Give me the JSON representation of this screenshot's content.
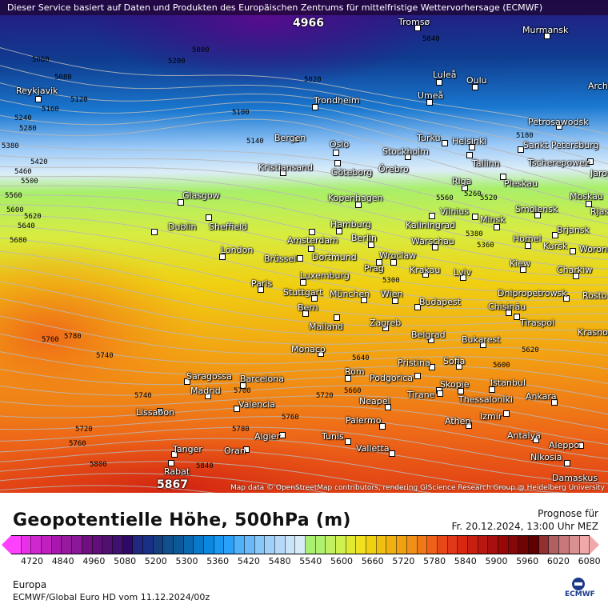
{
  "disclaimer": "Dieser Service basiert auf Daten und Produkten des Europäischen Zentrums für mittelfristige Wettervorhersage (ECMWF)",
  "attribution": "Map data © OpenStreetMap contributors, rendering GIScience Research Group @ Heidelberg University",
  "title": "Geopotentielle Höhe, 500hPa (m)",
  "forecast_label": "Prognose für",
  "forecast_time": "Fr. 20.12.2024, 13:00 Uhr MEZ",
  "region": "Europa",
  "model_run": "ECMWF/Global Euro HD vom  11.12.2024/00z",
  "logo_text": "ECMWF",
  "colorbar": {
    "ticks": [
      "4720",
      "4840",
      "4960",
      "5080",
      "5200",
      "5300",
      "5360",
      "5420",
      "5480",
      "5540",
      "5600",
      "5660",
      "5720",
      "5780",
      "5840",
      "5900",
      "5960",
      "6020",
      "6080"
    ],
    "colors": [
      "#ff40ff",
      "#e830e8",
      "#d028d0",
      "#c020c0",
      "#a818b0",
      "#9818a0",
      "#8a1898",
      "#701080",
      "#601078",
      "#501070",
      "#401070",
      "#300868",
      "#202880",
      "#1a3088",
      "#154080",
      "#10508c",
      "#0c5898",
      "#0868b0",
      "#0a78c8",
      "#0a88e0",
      "#1898f0",
      "#2aa0f8",
      "#50b0f8",
      "#6ab8f8",
      "#88c8f8",
      "#a0d0f8",
      "#b8d8f8",
      "#c8e4f8",
      "#d8ecf8",
      "#a8f070",
      "#b0f070",
      "#c0f060",
      "#d0f050",
      "#e0e830",
      "#f0e020",
      "#f0d010",
      "#f0c010",
      "#f0b010",
      "#f0a010",
      "#f09018",
      "#f07818",
      "#f06018",
      "#e84818",
      "#e03818",
      "#d82810",
      "#c82010",
      "#b81810",
      "#a81010",
      "#980808",
      "#880808",
      "#700404",
      "#600000",
      "#903030",
      "#b06060",
      "#c87878",
      "#d89090",
      "#f0a8a8"
    ]
  },
  "extremes": [
    {
      "type": "low",
      "value": "4966"
    },
    {
      "type": "high",
      "value": "5867"
    }
  ],
  "contour_labels": [
    "5000",
    "5040",
    "5060",
    "5080",
    "5020",
    "5120",
    "5160",
    "5200",
    "5240",
    "5280",
    "5380",
    "5420",
    "5460",
    "5500",
    "5560",
    "5600",
    "5620",
    "5640",
    "5680",
    "5760",
    "5780",
    "5740",
    "5740",
    "5720",
    "5760",
    "5800",
    "5840",
    "5780",
    "5700",
    "5660",
    "5640",
    "5620",
    "5600",
    "5560",
    "5520",
    "5380",
    "5360",
    "5300",
    "5260",
    "5140",
    "5100",
    "5180",
    "5720",
    "5760"
  ],
  "cities": [
    "Tromsø",
    "Murmansk",
    "Reykjavik",
    "Luleå",
    "Oulu",
    "Arch",
    "Umeå",
    "Trondheim",
    "Petrosawodsk",
    "Bergen",
    "Oslo",
    "Turku",
    "Helsinki",
    "Sankt Petersburg",
    "Stockholm",
    "Kristiansand",
    "Göteborg",
    "Örebro",
    "Tallinn",
    "Tscherepowez",
    "Jaros",
    "Pleskau",
    "Riga",
    "Glasgow",
    "Kopenhagen",
    "Moskau",
    "Vilnius",
    "Smolensk",
    "Rjas",
    "Dublin",
    "Sheffield",
    "Hamburg",
    "Kaliningrad",
    "Minsk",
    "Brjansk",
    "Amsterdam",
    "Berlin",
    "Warschau",
    "Homel",
    "Kursk",
    "Worone",
    "London",
    "Brüssel",
    "Dortmund",
    "Wroclaw",
    "Kiew",
    "Krakau",
    "Prag",
    "Charkiw",
    "Luxemburg",
    "Lviv",
    "Paris",
    "Stuttgart",
    "München",
    "Wien",
    "Dnipropetrowsk",
    "Rosto",
    "Budapest",
    "Chisinău",
    "Bern",
    "Tiraspol",
    "Mailand",
    "Zagreb",
    "Belgrad",
    "Krasno",
    "Bukarest",
    "Monaco",
    "Pristina",
    "Sofia",
    "Rom",
    "Podgorica",
    "Skopje",
    "Istanbul",
    "Saragossa",
    "Barcelona",
    "Madrid",
    "Tirane",
    "Thessaloniki",
    "Ankara",
    "Neapel",
    "Valencia",
    "Lissabon",
    "Izmir",
    "Palermo",
    "Athen",
    "Algier",
    "Tunis",
    "Antalya",
    "Aleppo",
    "Tanger",
    "Oran",
    "Valletta",
    "Nikosia",
    "Rabat",
    "Damaskus"
  ]
}
